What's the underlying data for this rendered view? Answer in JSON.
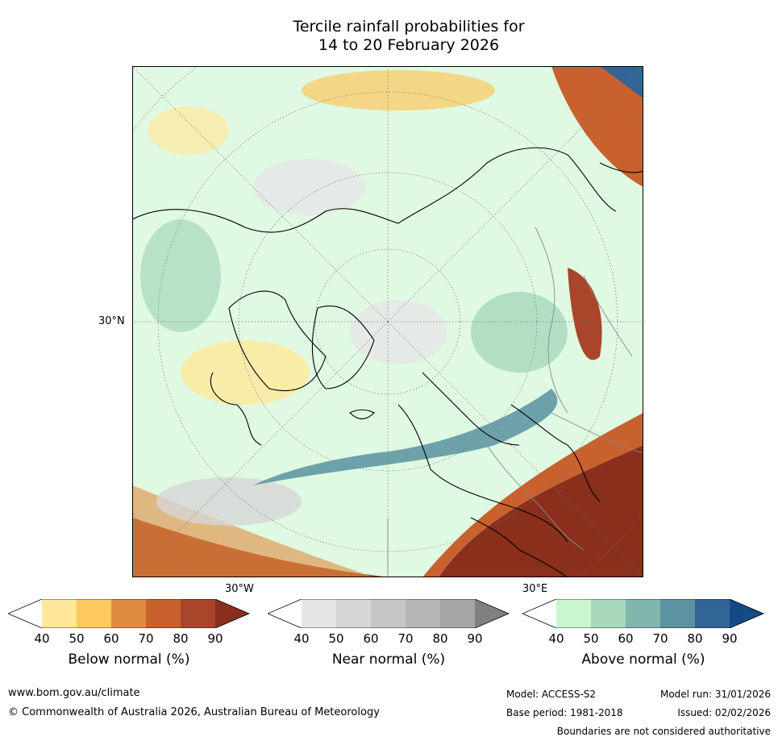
{
  "title": {
    "line1": "Tercile rainfall probabilities for",
    "line2": "14 to 20 February 2026"
  },
  "map": {
    "projection": "north-polar-stereographic",
    "lat_label": "30°N",
    "lon_labels": [
      "30°W",
      "30°E"
    ]
  },
  "colorbars": [
    {
      "name": "below-normal",
      "label": "Below normal (%)",
      "ticks": [
        "40",
        "50",
        "60",
        "70",
        "80",
        "90"
      ],
      "colors": [
        "#ffffff",
        "#ffe89a",
        "#fcc85f",
        "#e08c40",
        "#c8612e",
        "#a8452a",
        "#8a2f1c"
      ]
    },
    {
      "name": "near-normal",
      "label": "Near normal (%)",
      "ticks": [
        "40",
        "50",
        "60",
        "70",
        "80",
        "90"
      ],
      "colors": [
        "#ffffff",
        "#e6e6e6",
        "#d6d6d6",
        "#c6c6c6",
        "#b6b6b6",
        "#a6a6a6",
        "#808080"
      ]
    },
    {
      "name": "above-normal",
      "label": "Above normal (%)",
      "ticks": [
        "40",
        "50",
        "60",
        "70",
        "80",
        "90"
      ],
      "colors": [
        "#ffffff",
        "#c8f7cf",
        "#a6d8bb",
        "#80b6ae",
        "#5b93a0",
        "#316497",
        "#134a86"
      ]
    }
  ],
  "footer": {
    "website": "www.bom.gov.au/climate",
    "copyright": "© Commonwealth of Australia 2026, Australian Bureau of Meteorology",
    "model": "Model: ACCESS-S2",
    "base_period": "Base period: 1981-2018",
    "model_run": "Model run: 31/01/2026",
    "issued": "Issued: 02/02/2026",
    "disclaimer": "Boundaries are not considered authoritative"
  }
}
